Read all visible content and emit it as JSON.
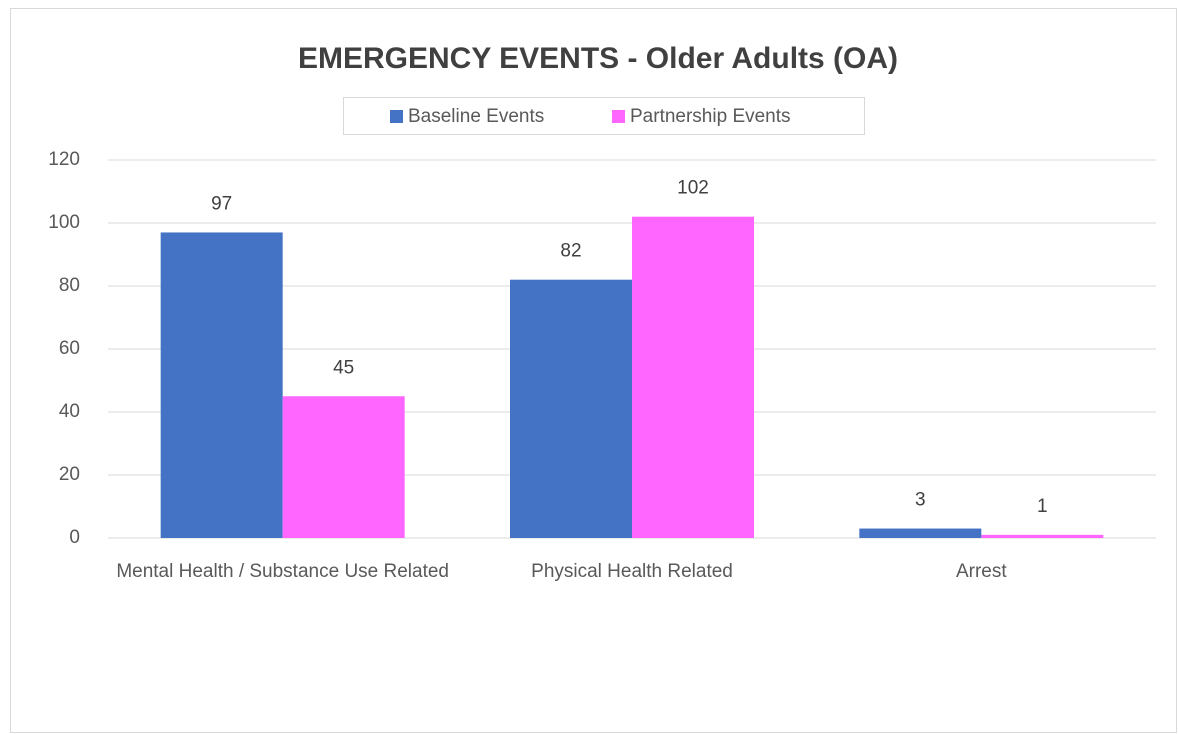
{
  "chart_data": {
    "type": "bar",
    "title": "EMERGENCY EVENTS - Older Adults (OA)",
    "categories": [
      "Mental Health / Substance Use Related",
      "Physical Health Related",
      "Arrest"
    ],
    "series": [
      {
        "name": "Baseline Events",
        "color": "#4472c4",
        "values": [
          97,
          82,
          3
        ]
      },
      {
        "name": "Partnership Events",
        "color": "#ff66ff",
        "values": [
          45,
          102,
          1
        ]
      }
    ],
    "ylim": [
      0,
      120
    ],
    "yticks": [
      0,
      20,
      40,
      60,
      80,
      100,
      120
    ],
    "grid": true,
    "legend": "top"
  }
}
